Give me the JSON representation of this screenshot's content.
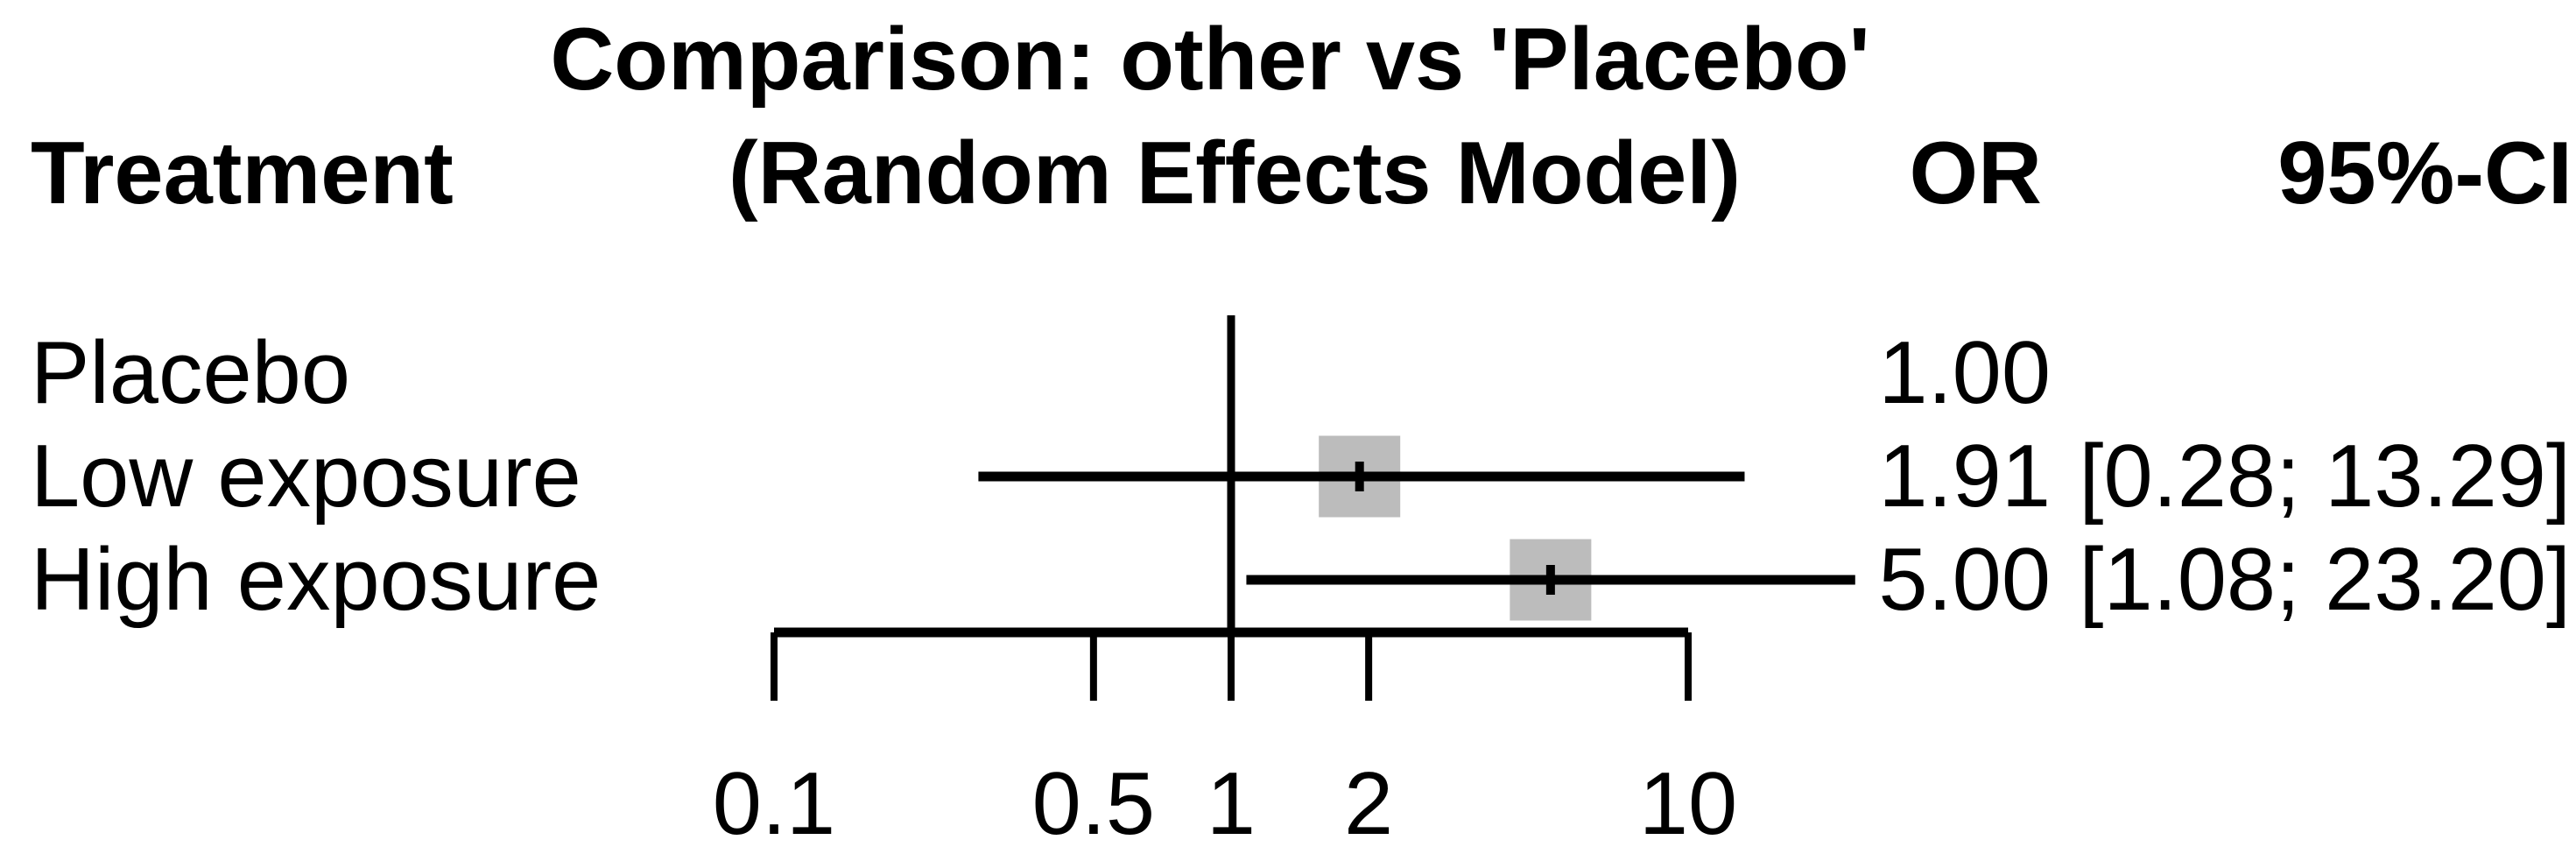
{
  "figure": {
    "title_line1": "Comparison: other vs 'Placebo'",
    "title_line2": "(Random Effects Model)",
    "col_treatment": "Treatment",
    "col_or": "OR",
    "col_ci": "95%-CI"
  },
  "colors": {
    "text": "#000000",
    "lines": "#000000",
    "square_fill": "#bcbcbc",
    "background": "#ffffff"
  },
  "chart_data": {
    "type": "forest",
    "title": "Comparison: other vs 'Placebo' (Random Effects Model)",
    "effect_measure": "OR",
    "model": "Random Effects Model",
    "x_scale": "log",
    "x_range": [
      0.1,
      10
    ],
    "x_tick_values": [
      0.1,
      0.5,
      1,
      2,
      10
    ],
    "x_tick_labels": [
      "0.1",
      "0.5",
      "1",
      "2",
      "10"
    ],
    "reference_line": 1,
    "grid": false,
    "columns": [
      "Treatment",
      "OR",
      "95%-CI"
    ],
    "rows": [
      {
        "treatment": "Placebo",
        "or": 1.0,
        "or_label": "1.00",
        "ci_lower": null,
        "ci_upper": null,
        "ci_label": ""
      },
      {
        "treatment": "Low exposure",
        "or": 1.91,
        "or_label": "1.91",
        "ci_lower": 0.28,
        "ci_upper": 13.29,
        "ci_label": "[0.28; 13.29]"
      },
      {
        "treatment": "High exposure",
        "or": 5.0,
        "or_label": "5.00",
        "ci_lower": 1.08,
        "ci_upper": 23.2,
        "ci_label": "[1.08; 23.20]"
      }
    ]
  }
}
